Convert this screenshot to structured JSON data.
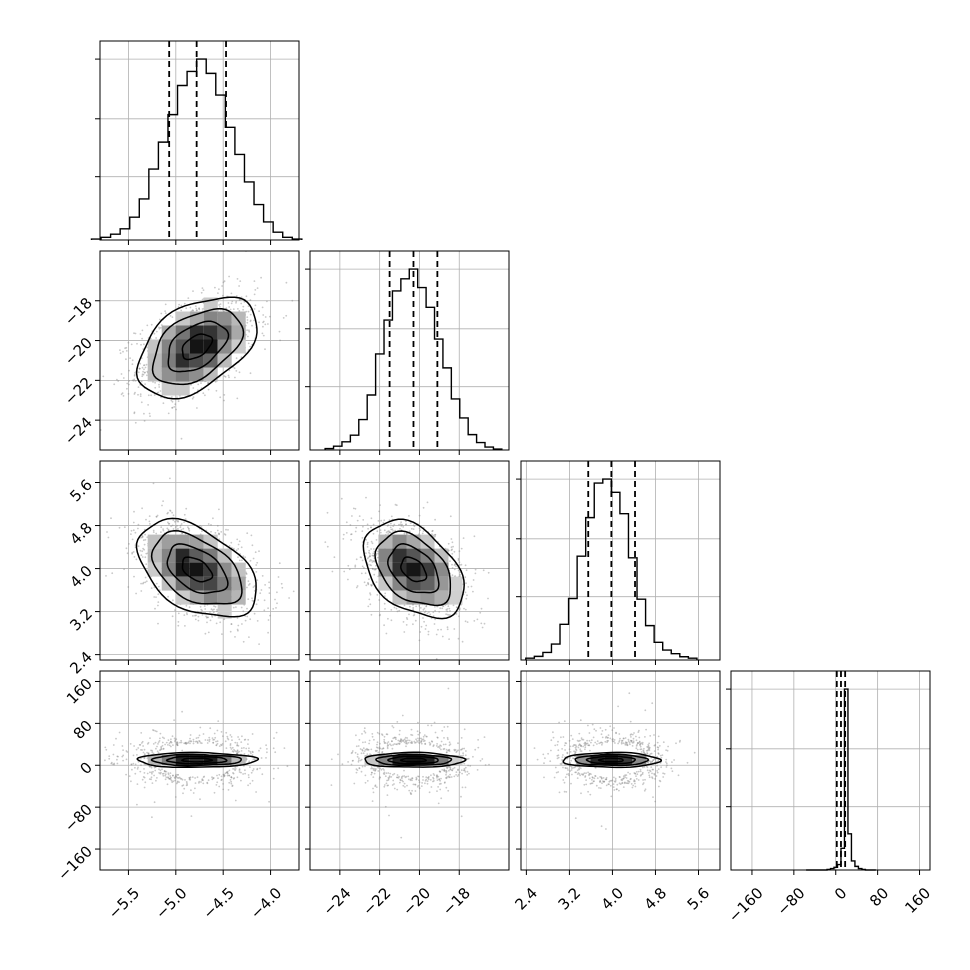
{
  "chart_data": {
    "type": "corner",
    "title": "",
    "grid": true,
    "parameters": [
      {
        "name": "",
        "range": [
          -5.8,
          -3.7
        ],
        "median": -4.78,
        "quantile_16": -5.07,
        "quantile_84": -4.47,
        "ticks": [
          -5.5,
          -5.0,
          -4.5,
          -4.0
        ],
        "tick_labels": [
          "−5.5",
          "−5.0",
          "−4.5",
          "−4.0"
        ],
        "sigma": 0.3,
        "hist": [
          0.5,
          1.5,
          3.2,
          6.2,
          12.6,
          22.7,
          39.2,
          54.1,
          69.3,
          85.4,
          93.2,
          100.0,
          92.1,
          80.1,
          62.3,
          47.3,
          32.1,
          19.6,
          10.0,
          4.3,
          1.5,
          0.5
        ]
      },
      {
        "name": "",
        "range": [
          -25.5,
          -15.5
        ],
        "median": -20.3,
        "quantile_16": -21.5,
        "quantile_84": -19.1,
        "ticks": [
          -24,
          -22,
          -20,
          -18
        ],
        "tick_labels": [
          "−24",
          "−22",
          "−20",
          "−18"
        ],
        "sigma": 1.2,
        "hist": [
          0.8,
          2.1,
          4.5,
          8.2,
          16.8,
          30.4,
          53.1,
          71.8,
          87.9,
          94.6,
          100.0,
          89.8,
          78.9,
          61.3,
          45.4,
          28.2,
          17.7,
          8.5,
          4.1,
          1.6,
          0.5
        ]
      },
      {
        "name": "",
        "range": [
          2.3,
          6.0
        ],
        "median": 3.98,
        "quantile_16": 3.55,
        "quantile_84": 4.42,
        "ticks": [
          2.4,
          3.2,
          4.0,
          4.8,
          5.6
        ],
        "tick_labels": [
          "2.4",
          "3.2",
          "4.0",
          "4.8",
          "5.6"
        ],
        "sigma": 0.43,
        "hist": [
          1.0,
          2.0,
          4.2,
          8.8,
          19.7,
          34.0,
          57.4,
          78.7,
          97.8,
          100.0,
          92.7,
          80.9,
          56.5,
          33.6,
          19.0,
          9.8,
          5.5,
          3.5,
          1.8,
          1.0
        ]
      },
      {
        "name": "",
        "range": [
          -200,
          180
        ],
        "median": 10,
        "quantile_16": 2,
        "quantile_84": 18,
        "ticks": [
          -160,
          -80,
          0,
          80,
          160
        ],
        "tick_labels": [
          "−160",
          "−80",
          "0",
          "80",
          "160"
        ],
        "sigma": 18,
        "hist": [
          0,
          0,
          0,
          0,
          0,
          0,
          0.3,
          0.8,
          1.5,
          3.0,
          12.0,
          100.0,
          20.0,
          5.0,
          2.0,
          0.8,
          0.3,
          0,
          0,
          0
        ]
      }
    ],
    "correlations": [
      {
        "row": 1,
        "col": 0,
        "r": 0.45
      },
      {
        "row": 2,
        "col": 0,
        "r": -0.45
      },
      {
        "row": 2,
        "col": 1,
        "r": -0.4
      },
      {
        "row": 3,
        "col": 0,
        "r": 0.0
      },
      {
        "row": 3,
        "col": 1,
        "r": 0.0
      },
      {
        "row": 3,
        "col": 2,
        "r": 0.0
      }
    ],
    "contour_levels_sigma": [
      0.5,
      1.0,
      1.5,
      2.0
    ],
    "colors": {
      "line": "#000000",
      "grid": "#b0b0b0",
      "points": "#888888",
      "background": "#ffffff"
    }
  }
}
